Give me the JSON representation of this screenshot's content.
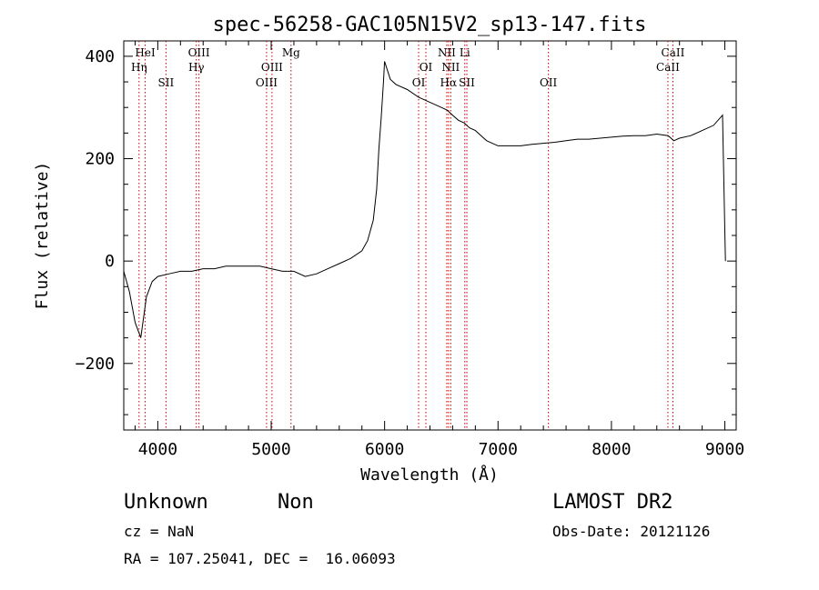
{
  "chart_data": {
    "type": "line",
    "title": "spec-56258-GAC105N15V2_sp13-147.fits",
    "xlabel": "Wavelength (Å)",
    "ylabel": "Flux (relative)",
    "xlim": [
      3700,
      9100
    ],
    "ylim": [
      -330,
      430
    ],
    "xticks": [
      4000,
      5000,
      6000,
      7000,
      8000,
      9000
    ],
    "yticks": [
      -200,
      0,
      200,
      400
    ],
    "grid": false,
    "line_color": "#000000",
    "marker_color": "#cc0000",
    "series": [
      {
        "x": [
          3700,
          3750,
          3800,
          3850,
          3900,
          3950,
          4000,
          4100,
          4200,
          4300,
          4400,
          4500,
          4600,
          4700,
          4800,
          4900,
          5000,
          5100,
          5200,
          5300,
          5400,
          5500,
          5600,
          5700,
          5800,
          5850,
          5900,
          5930,
          5950,
          5970,
          5990,
          6000,
          6050,
          6100,
          6200,
          6300,
          6400,
          6500,
          6550,
          6600,
          6650,
          6700,
          6750,
          6800,
          6850,
          6900,
          7000,
          7100,
          7200,
          7300,
          7400,
          7500,
          7600,
          7700,
          7800,
          7900,
          8000,
          8100,
          8200,
          8300,
          8400,
          8500,
          8550,
          8600,
          8700,
          8800,
          8900,
          8980,
          9000,
          9005
        ],
        "y": [
          -20,
          -60,
          -120,
          -150,
          -70,
          -40,
          -30,
          -25,
          -20,
          -20,
          -15,
          -15,
          -10,
          -10,
          -10,
          -10,
          -15,
          -20,
          -20,
          -30,
          -25,
          -15,
          -5,
          5,
          20,
          40,
          80,
          140,
          220,
          280,
          350,
          390,
          355,
          345,
          335,
          320,
          310,
          300,
          295,
          285,
          275,
          270,
          260,
          255,
          245,
          235,
          225,
          225,
          225,
          228,
          230,
          232,
          235,
          238,
          238,
          240,
          242,
          244,
          245,
          245,
          248,
          245,
          235,
          240,
          245,
          255,
          265,
          285,
          60,
          0
        ]
      }
    ],
    "lines": [
      {
        "x": 3835,
        "label": "Hη",
        "row": 2
      },
      {
        "x": 3889,
        "label": "HeI",
        "row": 1
      },
      {
        "x": 4072,
        "label": "SII",
        "row": 3
      },
      {
        "x": 4340,
        "label": "Hγ",
        "row": 2
      },
      {
        "x": 4363,
        "label": "OIII",
        "row": 1
      },
      {
        "x": 4959,
        "label": "OIII",
        "row": 3
      },
      {
        "x": 5007,
        "label": "OIII",
        "row": 2
      },
      {
        "x": 5175,
        "label": "Mg",
        "row": 1
      },
      {
        "x": 6300,
        "label": "OI",
        "row": 3
      },
      {
        "x": 6364,
        "label": "OI",
        "row": 2
      },
      {
        "x": 6548,
        "label": "NII",
        "row": 1
      },
      {
        "x": 6563,
        "label": "Hα",
        "row": 3
      },
      {
        "x": 6583,
        "label": "NII",
        "row": 2
      },
      {
        "x": 6707,
        "label": "Li",
        "row": 1
      },
      {
        "x": 6725,
        "label": "SII",
        "row": 3
      },
      {
        "x": 7444,
        "label": "OII",
        "row": 3
      },
      {
        "x": 8498,
        "label": "CaII",
        "row": 2
      },
      {
        "x": 8542,
        "label": "CaII",
        "row": 1
      }
    ]
  },
  "info": {
    "object_class": "Unknown",
    "object_subclass": "Non",
    "survey": "LAMOST DR2",
    "redshift": "cz = NaN",
    "obs_date": "Obs-Date: 20121126",
    "coords": "RA = 107.25041, DEC =  16.06093"
  }
}
